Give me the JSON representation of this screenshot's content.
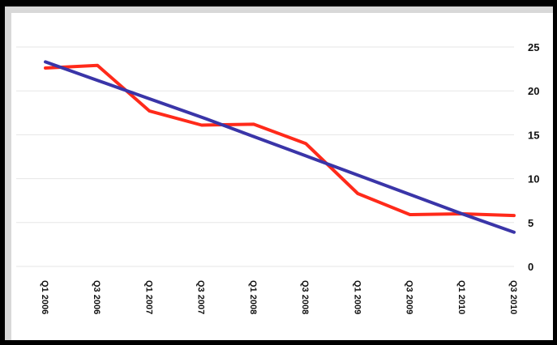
{
  "chart_data": {
    "type": "line",
    "title": "",
    "xlabel": "",
    "ylabel": "",
    "x_labels": [
      "Q1 2006",
      "Q3 2006",
      "Q1 2007",
      "Q3 2007",
      "Q1 2008",
      "Q3 2008",
      "Q1 2009",
      "Q3 2009",
      "Q1 2010",
      "Q3 2010"
    ],
    "ylim": [
      0,
      25
    ],
    "y_ticks": [
      0,
      5,
      10,
      15,
      20,
      25
    ],
    "y_axis_side": "right",
    "grid": true,
    "series": [
      {
        "color": "#ff2a1a",
        "values": [
          22.6,
          22.9,
          17.7,
          16.1,
          16.2,
          14.0,
          8.3,
          5.9,
          6.0,
          5.8
        ]
      },
      {
        "color": "#3a35a8",
        "values": [
          23.3,
          21.2,
          19.1,
          17.0,
          14.8,
          12.6,
          10.4,
          8.2,
          6.0,
          3.9
        ]
      }
    ]
  }
}
